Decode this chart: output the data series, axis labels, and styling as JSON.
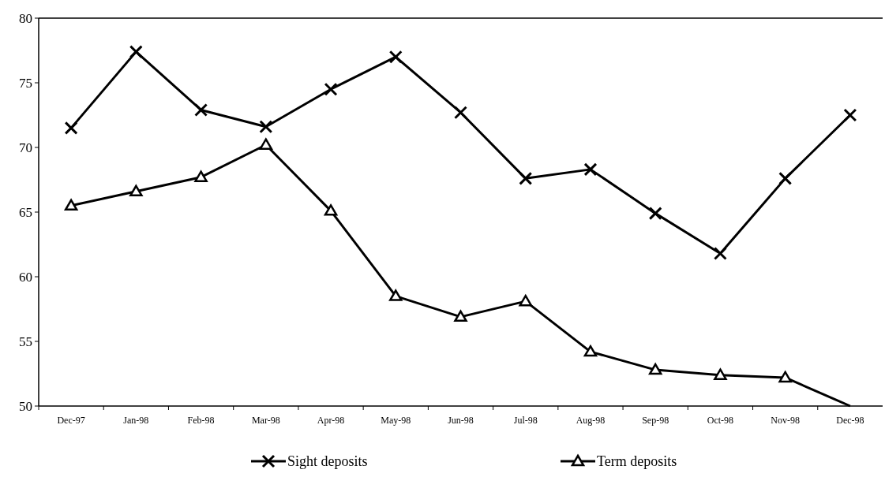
{
  "chart_data": {
    "type": "line",
    "categories": [
      "Dec-97",
      "Jan-98",
      "Feb-98",
      "Mar-98",
      "Apr-98",
      "May-98",
      "Jun-98",
      "Jul-98",
      "Aug-98",
      "Sep-98",
      "Oct-98",
      "Nov-98",
      "Dec-98"
    ],
    "series": [
      {
        "name": "Sight deposits",
        "color": "#000000",
        "marker": "cross",
        "values": [
          71.5,
          77.4,
          72.9,
          71.6,
          74.5,
          77.0,
          72.7,
          67.6,
          68.3,
          64.9,
          61.8,
          67.6,
          72.5
        ]
      },
      {
        "name": "Term deposits",
        "color": "#000000",
        "marker": "triangle",
        "values": [
          65.5,
          66.6,
          67.7,
          70.2,
          65.1,
          58.5,
          56.9,
          58.1,
          54.2,
          52.8,
          52.4,
          52.2,
          50
        ]
      }
    ],
    "ylim": [
      50,
      80
    ],
    "yticks": [
      50,
      55,
      60,
      65,
      70,
      75,
      80
    ],
    "legend": "bottom",
    "line_style": "solid",
    "grid": false
  }
}
